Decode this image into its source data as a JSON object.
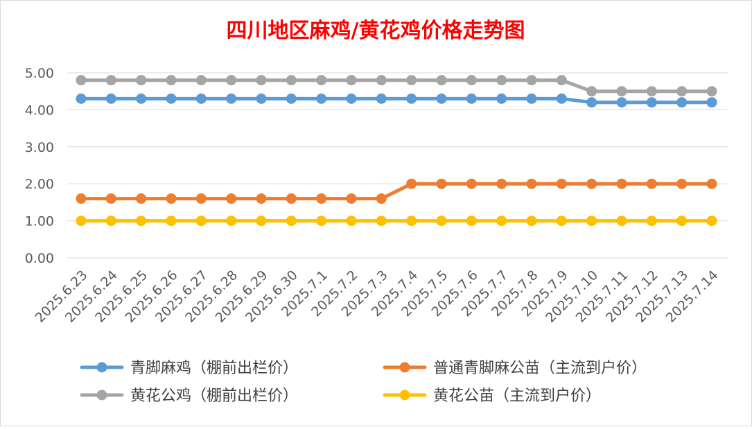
{
  "chart_data": {
    "type": "line",
    "title": "四川地区麻鸡/黄花鸡价格走势图",
    "xlabel": "",
    "ylabel": "",
    "ylim": [
      0,
      5
    ],
    "yticks": [
      "0.00",
      "1.00",
      "2.00",
      "3.00",
      "4.00",
      "5.00"
    ],
    "grid": "horizontal",
    "legend_position": "bottom",
    "categories": [
      "2025.6.23",
      "2025.6.24",
      "2025.6.25",
      "2025.6.26",
      "2025.6.27",
      "2025.6.28",
      "2025.6.29",
      "2025.6.30",
      "2025.7.1",
      "2025.7.2",
      "2025.7.3",
      "2025.7.4",
      "2025.7.5",
      "2025.7.6",
      "2025.7.7",
      "2025.7.8",
      "2025.7.9",
      "2025.7.10",
      "2025.7.11",
      "2025.7.12",
      "2025.7.13",
      "2025.7.14"
    ],
    "series": [
      {
        "name": "青脚麻鸡（棚前出栏价）",
        "color": "#5b9bd5",
        "values": [
          4.3,
          4.3,
          4.3,
          4.3,
          4.3,
          4.3,
          4.3,
          4.3,
          4.3,
          4.3,
          4.3,
          4.3,
          4.3,
          4.3,
          4.3,
          4.3,
          4.3,
          4.2,
          4.2,
          4.2,
          4.2,
          4.2
        ]
      },
      {
        "name": "普通青脚麻公苗（主流到户价）",
        "color": "#ed7d31",
        "values": [
          1.6,
          1.6,
          1.6,
          1.6,
          1.6,
          1.6,
          1.6,
          1.6,
          1.6,
          1.6,
          1.6,
          2.0,
          2.0,
          2.0,
          2.0,
          2.0,
          2.0,
          2.0,
          2.0,
          2.0,
          2.0,
          2.0
        ]
      },
      {
        "name": "黄花公鸡（棚前出栏价）",
        "color": "#a5a5a5",
        "values": [
          4.8,
          4.8,
          4.8,
          4.8,
          4.8,
          4.8,
          4.8,
          4.8,
          4.8,
          4.8,
          4.8,
          4.8,
          4.8,
          4.8,
          4.8,
          4.8,
          4.8,
          4.5,
          4.5,
          4.5,
          4.5,
          4.5
        ]
      },
      {
        "name": "黄花公苗（主流到户价）",
        "color": "#ffc000",
        "values": [
          1.0,
          1.0,
          1.0,
          1.0,
          1.0,
          1.0,
          1.0,
          1.0,
          1.0,
          1.0,
          1.0,
          1.0,
          1.0,
          1.0,
          1.0,
          1.0,
          1.0,
          1.0,
          1.0,
          1.0,
          1.0,
          1.0
        ]
      }
    ]
  }
}
